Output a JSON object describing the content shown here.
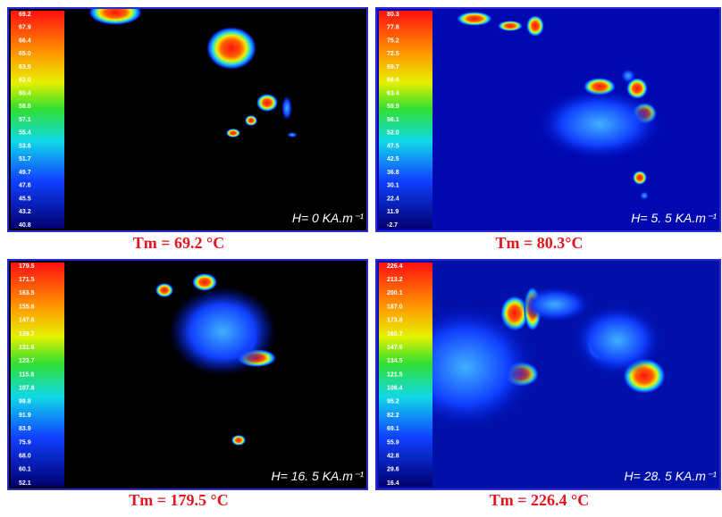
{
  "panels": [
    {
      "scale_labels": [
        "69.2",
        "67.9",
        "66.4",
        "65.0",
        "63.5",
        "62.0",
        "60.4",
        "58.8",
        "57.1",
        "55.4",
        "53.6",
        "51.7",
        "49.7",
        "47.6",
        "45.5",
        "43.2",
        "40.8"
      ],
      "field_label": "H= 0 KA.m⁻¹",
      "caption": "Tm = 69.2 °C"
    },
    {
      "scale_labels": [
        "80.3",
        "77.8",
        "75.2",
        "72.5",
        "69.7",
        "66.6",
        "63.4",
        "59.9",
        "56.1",
        "52.0",
        "47.5",
        "42.5",
        "36.8",
        "30.1",
        "22.4",
        "11.9",
        "-2.7"
      ],
      "field_label": "H= 5. 5 KA.m⁻¹",
      "caption": "Tm = 80.3°C"
    },
    {
      "scale_labels": [
        "179.5",
        "171.5",
        "163.5",
        "155.6",
        "147.6",
        "139.7",
        "131.6",
        "123.7",
        "115.8",
        "107.8",
        "99.8",
        "91.9",
        "83.9",
        "75.9",
        "68.0",
        "60.1",
        "52.1"
      ],
      "field_label": "H= 16. 5 KA.m⁻¹",
      "caption": "Tm = 179.5 °C"
    },
    {
      "scale_labels": [
        "226.4",
        "213.2",
        "200.1",
        "187.0",
        "173.8",
        "160.7",
        "147.6",
        "134.5",
        "121.5",
        "108.4",
        "95.2",
        "82.2",
        "69.1",
        "55.9",
        "42.8",
        "29.6",
        "16.4"
      ],
      "field_label": "H= 28. 5 KA.m⁻¹",
      "caption": "Tm = 226.4 °C"
    }
  ]
}
